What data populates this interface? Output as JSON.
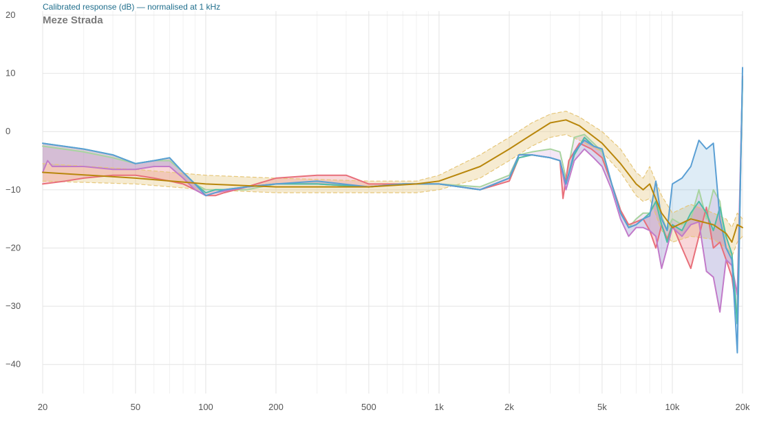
{
  "header": {
    "title": "Calibrated response (dB) — normalised at 1 kHz",
    "headphone_name": "Meze Strada"
  },
  "chart_data": {
    "type": "line",
    "title": "Calibrated response (dB) — normalised at 1 kHz",
    "subtitle": "Meze Strada",
    "xlabel": "",
    "ylabel": "",
    "x_scale": "log",
    "xlim": [
      20,
      20000
    ],
    "ylim": [
      -45,
      20
    ],
    "x_ticks": [
      20,
      50,
      100,
      200,
      500,
      1000,
      2000,
      5000,
      10000,
      20000
    ],
    "x_tick_labels": [
      "20",
      "50",
      "100",
      "200",
      "500",
      "1k",
      "2k",
      "5k",
      "10k",
      "20k"
    ],
    "x_minor_gridlines": [
      30,
      40,
      60,
      70,
      80,
      90,
      300,
      400,
      600,
      700,
      800,
      900,
      3000,
      4000,
      6000,
      7000,
      8000,
      9000
    ],
    "y_ticks": [
      20,
      10,
      0,
      -10,
      -20,
      -30,
      -40
    ],
    "y_tick_labels": [
      "20",
      "10",
      "0",
      "−10",
      "−20",
      "−30",
      "−40"
    ],
    "grid": true,
    "legend": "none",
    "colors": {
      "target": "#b8860b",
      "target_band": "#e6c77a",
      "teal": "#4cbfa6",
      "blue": "#5a9fd4",
      "green": "#a8d4a0",
      "red": "#e86f7a",
      "purple": "#c27ac9",
      "fill_red": "#e86f7a",
      "fill_purple": "#c27ac9",
      "fill_blue": "#5a9fd4",
      "fill_target": "#e6c77a"
    },
    "series": [
      {
        "key": "target_upper",
        "style": "dashed",
        "x": [
          20,
          50,
          100,
          200,
          500,
          800,
          1000,
          1500,
          2000,
          2500,
          3000,
          3500,
          4000,
          5000,
          6000,
          7000,
          7500,
          8000,
          9000,
          10000,
          12000,
          15000,
          17000,
          18000,
          19000,
          20000
        ],
        "y": [
          -5.5,
          -6.5,
          -7.5,
          -8.0,
          -8.5,
          -8.5,
          -7.5,
          -4.0,
          -1.0,
          1.5,
          3.0,
          3.5,
          2.5,
          0.0,
          -3.0,
          -7.0,
          -8.0,
          -6.0,
          -11.0,
          -14.0,
          -12.5,
          -14.0,
          -15.0,
          -16.5,
          -14.0,
          -15.0
        ]
      },
      {
        "key": "target_lower",
        "style": "dashed",
        "x": [
          20,
          50,
          100,
          200,
          500,
          800,
          1000,
          1500,
          2000,
          2500,
          3000,
          3500,
          4000,
          5000,
          6000,
          7000,
          7500,
          8000,
          9000,
          10000,
          12000,
          15000,
          17000,
          18000,
          19000,
          20000
        ],
        "y": [
          -8.5,
          -9.0,
          -10.0,
          -10.5,
          -10.5,
          -10.5,
          -10.0,
          -8.0,
          -5.0,
          -2.5,
          -1.0,
          -0.5,
          -1.5,
          -3.5,
          -7.0,
          -11.0,
          -12.0,
          -11.5,
          -17.0,
          -19.0,
          -18.0,
          -18.5,
          -20.0,
          -21.5,
          -19.0,
          -18.0
        ]
      },
      {
        "key": "target",
        "x": [
          20,
          50,
          100,
          200,
          500,
          800,
          1000,
          1500,
          2000,
          2500,
          3000,
          3500,
          4000,
          5000,
          6000,
          7000,
          7500,
          8000,
          9000,
          10000,
          12000,
          15000,
          17000,
          18000,
          19000,
          20000
        ],
        "y": [
          -7.0,
          -8.0,
          -9.0,
          -9.5,
          -9.5,
          -9.0,
          -8.5,
          -6.0,
          -3.0,
          -0.5,
          1.5,
          2.0,
          1.0,
          -2.0,
          -5.5,
          -9.0,
          -10.0,
          -9.0,
          -14.0,
          -16.5,
          -15.0,
          -16.0,
          -17.5,
          -19.0,
          -16.0,
          -16.5
        ]
      },
      {
        "key": "teal",
        "x": [
          20,
          30,
          40,
          50,
          60,
          70,
          80,
          90,
          100,
          110,
          120,
          150,
          200,
          300,
          500,
          700,
          1000,
          1500,
          2000,
          2200,
          2500,
          3000,
          3300,
          3500,
          3800,
          4200,
          4600,
          5000,
          5500,
          6000,
          6500,
          7000,
          7500,
          8000,
          8500,
          9000,
          9500,
          10000,
          11000,
          12000,
          13000,
          14000,
          15000,
          16000,
          17000,
          18000,
          19000,
          20000
        ],
        "y": [
          -2.0,
          -3.0,
          -4.0,
          -5.5,
          -5.0,
          -4.5,
          -7.0,
          -9.0,
          -10.5,
          -10.0,
          -10.0,
          -9.5,
          -9.0,
          -9.0,
          -9.5,
          -9.0,
          -9.0,
          -10.0,
          -8.0,
          -4.5,
          -4.0,
          -4.5,
          -5.0,
          -9.0,
          -4.0,
          -1.0,
          -2.5,
          -3.0,
          -9.0,
          -14.0,
          -16.5,
          -16.0,
          -15.0,
          -14.0,
          -12.0,
          -16.0,
          -19.0,
          -16.0,
          -17.0,
          -14.0,
          -12.0,
          -14.0,
          -17.0,
          -13.0,
          -18.0,
          -21.0,
          -33.0,
          9.0
        ]
      },
      {
        "key": "blue",
        "x": [
          20,
          30,
          40,
          50,
          60,
          70,
          80,
          90,
          100,
          110,
          120,
          150,
          200,
          300,
          500,
          700,
          1000,
          1500,
          2000,
          2200,
          2500,
          3000,
          3300,
          3500,
          3800,
          4200,
          4600,
          5000,
          5500,
          6000,
          6500,
          7000,
          7500,
          8000,
          8500,
          9000,
          9500,
          10000,
          11000,
          12000,
          13000,
          14000,
          15000,
          16000,
          17000,
          18000,
          19000,
          20000
        ],
        "y": [
          -2.0,
          -3.0,
          -4.0,
          -5.5,
          -5.0,
          -4.5,
          -7.0,
          -9.0,
          -11.0,
          -10.5,
          -10.0,
          -9.5,
          -9.0,
          -8.5,
          -9.5,
          -9.0,
          -9.0,
          -10.0,
          -8.0,
          -4.0,
          -4.0,
          -4.5,
          -5.0,
          -9.0,
          -3.5,
          -1.5,
          -2.5,
          -3.0,
          -9.0,
          -14.0,
          -16.5,
          -16.0,
          -15.0,
          -14.5,
          -8.5,
          -15.0,
          -17.0,
          -9.0,
          -8.0,
          -6.0,
          -1.5,
          -3.0,
          -2.0,
          -15.0,
          -20.0,
          -22.0,
          -38.0,
          11.0
        ]
      },
      {
        "key": "green",
        "x": [
          20,
          30,
          40,
          50,
          60,
          70,
          80,
          90,
          100,
          150,
          200,
          300,
          500,
          700,
          1000,
          1500,
          2000,
          2200,
          2500,
          3000,
          3300,
          3500,
          3800,
          4200,
          4600,
          5000,
          5500,
          6000,
          6500,
          7000,
          7500,
          8000,
          8500,
          9000,
          9500,
          10000,
          11000,
          12000,
          13000,
          14000,
          15000,
          16000,
          17000,
          18000,
          19000,
          20000
        ],
        "y": [
          -2.5,
          -3.5,
          -4.5,
          -5.5,
          -5.0,
          -5.0,
          -7.0,
          -9.0,
          -10.0,
          -10.0,
          -9.0,
          -9.0,
          -9.5,
          -9.0,
          -9.0,
          -9.5,
          -7.5,
          -4.0,
          -3.5,
          -3.0,
          -3.5,
          -8.0,
          -1.0,
          -0.5,
          -2.0,
          -3.5,
          -9.0,
          -13.5,
          -16.5,
          -15.0,
          -14.0,
          -14.0,
          -12.0,
          -14.5,
          -17.0,
          -15.0,
          -16.0,
          -15.0,
          -10.0,
          -15.0,
          -10.0,
          -12.0,
          -20.0,
          -21.0,
          -33.0,
          9.0
        ]
      },
      {
        "key": "red",
        "x": [
          20,
          25,
          30,
          40,
          50,
          60,
          70,
          80,
          90,
          100,
          110,
          120,
          150,
          200,
          300,
          400,
          500,
          700,
          1000,
          1500,
          2000,
          2200,
          2500,
          3000,
          3300,
          3400,
          3600,
          4000,
          4500,
          5000,
          5500,
          6000,
          6500,
          7000,
          7500,
          8000,
          8500,
          9000,
          9500,
          10000,
          11000,
          12000,
          13000,
          14000,
          15000,
          16000,
          17000,
          18000,
          19000,
          20000
        ],
        "y": [
          -9.0,
          -8.5,
          -8.0,
          -7.5,
          -7.5,
          -8.0,
          -8.5,
          -9.0,
          -10.0,
          -11.0,
          -11.0,
          -10.5,
          -9.5,
          -8.0,
          -7.5,
          -7.5,
          -9.0,
          -9.0,
          -9.0,
          -10.0,
          -8.5,
          -4.5,
          -4.0,
          -4.5,
          -5.0,
          -11.5,
          -5.0,
          -2.0,
          -3.0,
          -4.5,
          -9.0,
          -13.5,
          -16.0,
          -15.5,
          -15.0,
          -17.0,
          -20.0,
          -16.0,
          -18.5,
          -16.0,
          -20.0,
          -23.5,
          -18.0,
          -13.0,
          -20.0,
          -19.0,
          -22.0,
          -25.0,
          -32.0,
          9.5
        ]
      },
      {
        "key": "purple",
        "x": [
          20,
          21,
          22,
          25,
          30,
          40,
          50,
          60,
          70,
          80,
          90,
          100,
          110,
          150,
          200,
          300,
          500,
          700,
          1000,
          1500,
          2000,
          2200,
          2500,
          3000,
          3300,
          3500,
          3800,
          4200,
          4600,
          5000,
          5500,
          6000,
          6500,
          7000,
          7500,
          8000,
          8500,
          9000,
          9500,
          10000,
          11000,
          12000,
          13000,
          14000,
          15000,
          16000,
          17000,
          18000,
          19000,
          20000
        ],
        "y": [
          -7.0,
          -5.0,
          -6.0,
          -6.0,
          -6.0,
          -6.5,
          -6.5,
          -6.0,
          -6.0,
          -8.0,
          -10.0,
          -11.0,
          -10.5,
          -9.5,
          -9.0,
          -9.0,
          -9.5,
          -9.0,
          -9.0,
          -10.0,
          -8.0,
          -4.0,
          -4.0,
          -4.5,
          -5.0,
          -10.0,
          -5.0,
          -3.0,
          -4.5,
          -6.0,
          -10.0,
          -15.0,
          -18.0,
          -16.5,
          -16.5,
          -17.0,
          -18.0,
          -23.5,
          -20.0,
          -16.5,
          -18.0,
          -16.0,
          -15.5,
          -24.0,
          -25.0,
          -31.0,
          -22.0,
          -23.0,
          -28.0,
          9.0
        ]
      }
    ],
    "fills": [
      {
        "between": [
          "target_upper",
          "target_lower"
        ],
        "color": "fill_target",
        "opacity": 0.35
      },
      {
        "between": [
          "teal",
          "red"
        ],
        "color": "fill_red",
        "opacity": 0.28
      },
      {
        "between": [
          "blue",
          "purple"
        ],
        "color": "fill_blue",
        "opacity": 0.2
      },
      {
        "between": [
          "green",
          "purple"
        ],
        "color": "fill_purple",
        "opacity": 0.18
      }
    ]
  }
}
